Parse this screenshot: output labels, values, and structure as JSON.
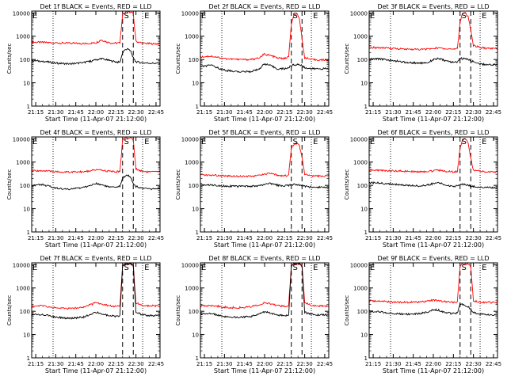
{
  "figure": {
    "colors": {
      "events": "#000000",
      "lld": "#ff0000",
      "axes": "#000000",
      "background": "#ffffff"
    },
    "shared": {
      "x_ticks": [
        "21:15",
        "21:30",
        "21:45",
        "22:00",
        "22:15",
        "22:30",
        "22:45"
      ],
      "x_tick_minutes": [
        15,
        30,
        45,
        60,
        75,
        90,
        105
      ],
      "xlabel": "Start Time (11-Apr-07 21:12:00)",
      "ylabel": "Counts/sec",
      "y_ticks": [
        "1",
        "10",
        "100",
        "1000",
        "10000"
      ],
      "marker_E": "E",
      "marker_S": "S"
    }
  },
  "chart_data": [
    {
      "type": "line",
      "title": "Det 1f BLACK = Events, RED = LLD",
      "xlim": [
        12,
        108
      ],
      "ylim": [
        1,
        12000
      ],
      "yscale": "log",
      "x_unit": "minutes after 21:00",
      "vlines_dotted": [
        28,
        95
      ],
      "vlines_dashed": [
        80,
        88
      ],
      "series": [
        {
          "name": "LLD",
          "color": "#ff0000",
          "x": [
            12,
            20,
            30,
            40,
            50,
            56,
            60,
            64,
            70,
            75,
            78,
            80,
            82,
            84,
            86,
            88,
            90,
            95,
            100,
            108
          ],
          "y": [
            560,
            540,
            520,
            500,
            480,
            500,
            520,
            700,
            520,
            500,
            520,
            9000,
            11000,
            11000,
            11000,
            9000,
            600,
            500,
            480,
            470
          ]
        },
        {
          "name": "Events",
          "color": "#000000",
          "x": [
            12,
            20,
            30,
            40,
            50,
            56,
            60,
            64,
            70,
            75,
            78,
            80,
            82,
            84,
            86,
            88,
            90,
            95,
            100,
            108
          ],
          "y": [
            90,
            85,
            70,
            65,
            72,
            85,
            95,
            110,
            90,
            80,
            75,
            200,
            260,
            280,
            230,
            120,
            80,
            72,
            70,
            68
          ]
        }
      ]
    },
    {
      "type": "line",
      "title": "Det 2f BLACK = Events, RED = LLD",
      "xlim": [
        12,
        108
      ],
      "ylim": [
        1,
        12000
      ],
      "yscale": "log",
      "x_unit": "minutes after 21:00",
      "vlines_dotted": [
        28,
        95
      ],
      "vlines_dashed": [
        80,
        88
      ],
      "series": [
        {
          "name": "LLD",
          "color": "#ff0000",
          "x": [
            12,
            20,
            30,
            40,
            50,
            56,
            60,
            64,
            70,
            75,
            78,
            80,
            82,
            84,
            86,
            88,
            90,
            95,
            100,
            108
          ],
          "y": [
            130,
            140,
            110,
            100,
            100,
            120,
            170,
            150,
            115,
            110,
            130,
            3000,
            8000,
            10000,
            6000,
            800,
            120,
            100,
            95,
            95
          ]
        },
        {
          "name": "Events",
          "color": "#000000",
          "x": [
            12,
            20,
            30,
            40,
            50,
            56,
            60,
            64,
            70,
            75,
            78,
            80,
            82,
            84,
            86,
            88,
            90,
            95,
            100,
            108
          ],
          "y": [
            50,
            55,
            35,
            30,
            30,
            40,
            65,
            55,
            40,
            40,
            45,
            55,
            60,
            60,
            60,
            55,
            45,
            40,
            40,
            40
          ]
        }
      ]
    },
    {
      "type": "line",
      "title": "Det 3f BLACK = Events, RED = LLD",
      "xlim": [
        12,
        108
      ],
      "ylim": [
        1,
        12000
      ],
      "yscale": "log",
      "x_unit": "minutes after 21:00",
      "vlines_dotted": [
        28,
        95
      ],
      "vlines_dashed": [
        80,
        88
      ],
      "series": [
        {
          "name": "LLD",
          "color": "#ff0000",
          "x": [
            12,
            20,
            30,
            40,
            50,
            56,
            60,
            64,
            70,
            75,
            78,
            80,
            82,
            84,
            86,
            88,
            90,
            95,
            100,
            108
          ],
          "y": [
            330,
            320,
            300,
            280,
            270,
            280,
            300,
            320,
            290,
            280,
            300,
            4000,
            10000,
            10000,
            7000,
            2000,
            400,
            320,
            300,
            300
          ]
        },
        {
          "name": "Events",
          "color": "#000000",
          "x": [
            12,
            20,
            30,
            40,
            50,
            56,
            60,
            64,
            70,
            75,
            78,
            80,
            82,
            84,
            86,
            88,
            90,
            95,
            100,
            108
          ],
          "y": [
            110,
            105,
            90,
            75,
            70,
            75,
            100,
            110,
            85,
            75,
            80,
            110,
            110,
            105,
            100,
            90,
            80,
            65,
            60,
            60
          ]
        }
      ]
    },
    {
      "type": "line",
      "title": "Det 4f BLACK = Events, RED = LLD",
      "xlim": [
        12,
        108
      ],
      "ylim": [
        1,
        12000
      ],
      "yscale": "log",
      "x_unit": "minutes after 21:00",
      "vlines_dotted": [
        28,
        95
      ],
      "vlines_dashed": [
        80,
        88
      ],
      "series": [
        {
          "name": "LLD",
          "color": "#ff0000",
          "x": [
            12,
            20,
            30,
            40,
            50,
            56,
            60,
            64,
            70,
            75,
            78,
            80,
            82,
            84,
            86,
            88,
            90,
            95,
            100,
            108
          ],
          "y": [
            420,
            430,
            380,
            370,
            380,
            420,
            470,
            450,
            400,
            380,
            400,
            9000,
            11000,
            11000,
            11000,
            9000,
            500,
            400,
            380,
            380
          ]
        },
        {
          "name": "Events",
          "color": "#000000",
          "x": [
            12,
            20,
            30,
            40,
            50,
            56,
            60,
            64,
            70,
            75,
            78,
            80,
            82,
            84,
            86,
            88,
            90,
            95,
            100,
            108
          ],
          "y": [
            100,
            110,
            75,
            70,
            80,
            100,
            120,
            110,
            85,
            80,
            90,
            200,
            260,
            260,
            230,
            120,
            90,
            75,
            70,
            70
          ]
        }
      ]
    },
    {
      "type": "line",
      "title": "Det 5f BLACK = Events, RED = LLD",
      "xlim": [
        12,
        108
      ],
      "ylim": [
        1,
        12000
      ],
      "yscale": "log",
      "x_unit": "minutes after 21:00",
      "vlines_dotted": [
        28,
        95
      ],
      "vlines_dashed": [
        80,
        88
      ],
      "series": [
        {
          "name": "LLD",
          "color": "#ff0000",
          "x": [
            12,
            20,
            30,
            40,
            50,
            56,
            60,
            64,
            70,
            75,
            78,
            80,
            82,
            84,
            86,
            88,
            90,
            95,
            100,
            108
          ],
          "y": [
            280,
            275,
            260,
            250,
            250,
            260,
            300,
            320,
            270,
            260,
            270,
            4000,
            6000,
            6500,
            5000,
            1500,
            300,
            250,
            250,
            250
          ]
        },
        {
          "name": "Events",
          "color": "#000000",
          "x": [
            12,
            20,
            30,
            40,
            50,
            56,
            60,
            64,
            70,
            75,
            78,
            80,
            82,
            84,
            86,
            88,
            90,
            95,
            100,
            108
          ],
          "y": [
            110,
            105,
            95,
            90,
            90,
            95,
            110,
            120,
            100,
            95,
            100,
            110,
            110,
            110,
            105,
            95,
            90,
            85,
            85,
            85
          ]
        }
      ]
    },
    {
      "type": "line",
      "title": "Det 6f BLACK = Events, RED = LLD",
      "xlim": [
        12,
        108
      ],
      "ylim": [
        1,
        12000
      ],
      "yscale": "log",
      "x_unit": "minutes after 21:00",
      "vlines_dotted": [
        28,
        95
      ],
      "vlines_dashed": [
        80,
        88
      ],
      "series": [
        {
          "name": "LLD",
          "color": "#ff0000",
          "x": [
            12,
            20,
            30,
            40,
            50,
            56,
            60,
            64,
            70,
            75,
            78,
            80,
            82,
            84,
            86,
            88,
            90,
            95,
            100,
            108
          ],
          "y": [
            450,
            440,
            420,
            400,
            390,
            400,
            420,
            450,
            400,
            380,
            400,
            4000,
            9000,
            10000,
            7000,
            1500,
            450,
            400,
            380,
            380
          ]
        },
        {
          "name": "Events",
          "color": "#000000",
          "x": [
            12,
            20,
            30,
            40,
            50,
            56,
            60,
            64,
            70,
            75,
            78,
            80,
            82,
            84,
            86,
            88,
            90,
            95,
            100,
            108
          ],
          "y": [
            130,
            125,
            110,
            100,
            95,
            105,
            120,
            130,
            100,
            90,
            95,
            110,
            110,
            105,
            100,
            95,
            90,
            85,
            80,
            80
          ]
        }
      ]
    },
    {
      "type": "line",
      "title": "Det 7f BLACK = Events, RED = LLD",
      "xlim": [
        12,
        108
      ],
      "ylim": [
        1,
        12000
      ],
      "yscale": "log",
      "x_unit": "minutes after 21:00",
      "vlines_dotted": [
        28,
        95
      ],
      "vlines_dashed": [
        80,
        88
      ],
      "series": [
        {
          "name": "LLD",
          "color": "#ff0000",
          "x": [
            12,
            20,
            30,
            40,
            50,
            56,
            60,
            64,
            70,
            75,
            78,
            80,
            82,
            84,
            86,
            88,
            90,
            95,
            100,
            108
          ],
          "y": [
            160,
            170,
            140,
            130,
            150,
            190,
            230,
            210,
            170,
            160,
            170,
            9000,
            11000,
            11000,
            11000,
            9000,
            230,
            180,
            170,
            170
          ]
        },
        {
          "name": "Events",
          "color": "#000000",
          "x": [
            12,
            20,
            30,
            40,
            50,
            56,
            60,
            64,
            70,
            75,
            78,
            80,
            82,
            84,
            86,
            88,
            90,
            95,
            100,
            108
          ],
          "y": [
            70,
            75,
            55,
            50,
            55,
            70,
            90,
            80,
            65,
            60,
            65,
            9000,
            11000,
            11000,
            11000,
            9000,
            90,
            70,
            65,
            65
          ]
        }
      ]
    },
    {
      "type": "line",
      "title": "Det 8f BLACK = Events, RED = LLD",
      "xlim": [
        12,
        108
      ],
      "ylim": [
        1,
        12000
      ],
      "yscale": "log",
      "x_unit": "minutes after 21:00",
      "vlines_dotted": [
        28,
        95
      ],
      "vlines_dashed": [
        80,
        88
      ],
      "series": [
        {
          "name": "LLD",
          "color": "#ff0000",
          "x": [
            12,
            20,
            30,
            40,
            50,
            56,
            60,
            64,
            70,
            75,
            78,
            80,
            82,
            84,
            86,
            88,
            90,
            95,
            100,
            108
          ],
          "y": [
            170,
            180,
            150,
            140,
            160,
            190,
            230,
            210,
            175,
            165,
            175,
            9000,
            11000,
            11000,
            11000,
            9000,
            230,
            180,
            170,
            170
          ]
        },
        {
          "name": "Events",
          "color": "#000000",
          "x": [
            12,
            20,
            30,
            40,
            50,
            56,
            60,
            64,
            70,
            75,
            78,
            80,
            82,
            84,
            86,
            88,
            90,
            95,
            100,
            108
          ],
          "y": [
            75,
            80,
            60,
            55,
            60,
            75,
            95,
            85,
            70,
            65,
            70,
            9000,
            11000,
            11000,
            11000,
            9000,
            90,
            75,
            70,
            70
          ]
        }
      ]
    },
    {
      "type": "line",
      "title": "Det 9f BLACK = Events, RED = LLD",
      "xlim": [
        12,
        108
      ],
      "ylim": [
        1,
        12000
      ],
      "yscale": "log",
      "x_unit": "minutes after 21:00",
      "vlines_dotted": [
        28,
        95
      ],
      "vlines_dashed": [
        80,
        88
      ],
      "series": [
        {
          "name": "LLD",
          "color": "#ff0000",
          "x": [
            12,
            20,
            30,
            40,
            50,
            56,
            60,
            64,
            70,
            75,
            78,
            80,
            82,
            84,
            86,
            88,
            90,
            95,
            100,
            108
          ],
          "y": [
            280,
            270,
            250,
            240,
            250,
            270,
            300,
            290,
            250,
            240,
            250,
            9000,
            11000,
            11000,
            11000,
            9000,
            280,
            250,
            240,
            240
          ]
        },
        {
          "name": "Events",
          "color": "#000000",
          "x": [
            12,
            20,
            30,
            40,
            50,
            56,
            60,
            64,
            70,
            75,
            78,
            80,
            82,
            84,
            86,
            88,
            90,
            95,
            100,
            108
          ],
          "y": [
            100,
            95,
            80,
            75,
            80,
            95,
            120,
            110,
            85,
            80,
            85,
            200,
            200,
            180,
            160,
            120,
            90,
            75,
            70,
            70
          ]
        }
      ]
    }
  ]
}
